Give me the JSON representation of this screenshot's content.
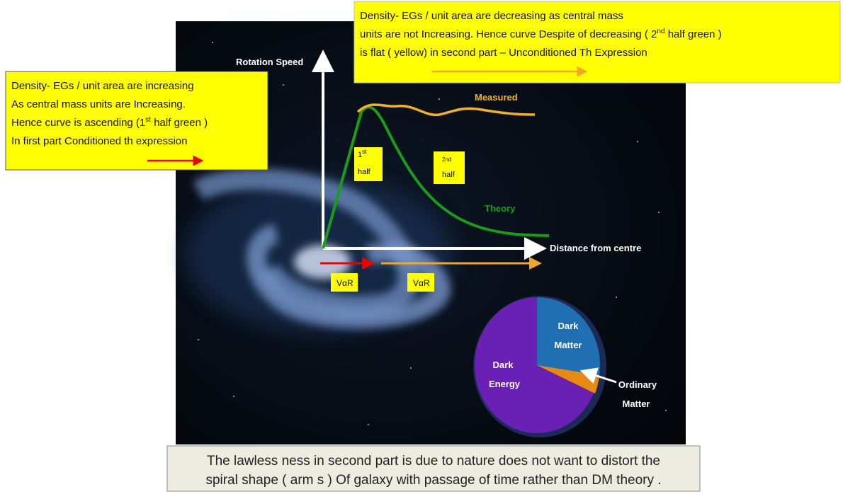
{
  "top_note": {
    "lines": [
      "Density- EGs  / unit area are decreasing  as central mass",
      {
        "text": "units are not Increasing. Hence curve Despite of decreasing  (  2",
        "sup": "nd",
        "rest": "  half green )"
      },
      "is  flat  ( yellow)  in  second  part – Unconditioned Th  Expression"
    ]
  },
  "left_note": {
    "lines": [
      "Density- EGs  / unit area  are increasing",
      "As central mass units are Increasing.",
      {
        "text": "Hence curve is ascending (1",
        "sup": "st",
        "rest": " half green )"
      },
      "In first part Conditioned  th expression"
    ]
  },
  "chart": {
    "y_axis_label": "Rotation Speed",
    "x_axis_label": "Distance from centre",
    "measured_label": "Measured",
    "theory_label": "Theory",
    "first_half": {
      "number": "1",
      "sup": "st",
      "word": "half"
    },
    "second_half": {
      "number": "2nd",
      "word": "half"
    },
    "var_labels": [
      "VαR",
      "VαR"
    ]
  },
  "pie": {
    "dark_matter": [
      "Dark",
      "Matter"
    ],
    "dark_energy": [
      "Dark",
      "Energy"
    ],
    "ordinary_matter": [
      "Ordinary",
      "Matter"
    ]
  },
  "footer": {
    "lines": [
      "The  lawless ness in second part is due to  nature does not  want to distort the",
      "spiral shape ( arm s ) Of galaxy  with passage of time  rather than DM theory ."
    ]
  }
}
